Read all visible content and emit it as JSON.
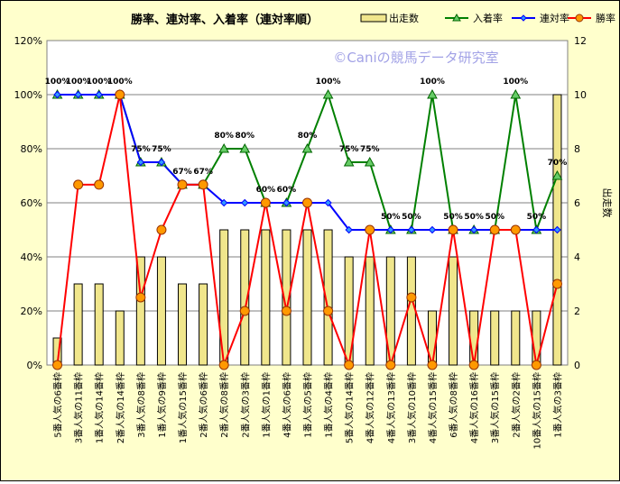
{
  "chart_data": {
    "type": "bar+line",
    "title": "勝率、連対率、入着率（連対率順）",
    "watermark": "©Caniの競馬データ研究室",
    "y2label": "出走数",
    "ylim": [
      0,
      1.2
    ],
    "y2lim": [
      0,
      12
    ],
    "yticks": [
      "0%",
      "20%",
      "40%",
      "60%",
      "80%",
      "100%",
      "120%"
    ],
    "y2ticks": [
      "0",
      "2",
      "4",
      "6",
      "8",
      "10",
      "12"
    ],
    "grid": true,
    "legend_position": "top-right",
    "categories": [
      "5番人気の6番枠",
      "3番人気の11番枠",
      "1番人気の14番枠",
      "2番人気の14番枠",
      "3番人気の8番枠",
      "1番人気の9番枠",
      "1番人気の15番枠",
      "2番人気の6番枠",
      "2番人気の8番枠",
      "2番人気の3番枠",
      "1番人気の1番枠",
      "4番人気の6番枠",
      "1番人気の5番枠",
      "1番人気の4番枠",
      "5番人気の14番枠",
      "4番人気の12番枠",
      "4番人気の13番枠",
      "3番人気の10番枠",
      "4番人気の15番枠",
      "6番人気の8番枠",
      "4番人気の16番枠",
      "3番人気の15番枠",
      "2番人気の2番枠",
      "10番人気の15番枠",
      "1番人気の3番枠"
    ],
    "series": [
      {
        "name": "出走数",
        "kind": "bar",
        "axis": "right",
        "color": "#f0e68c",
        "values": [
          1,
          3,
          3,
          2,
          4,
          4,
          3,
          3,
          5,
          5,
          5,
          5,
          5,
          5,
          4,
          4,
          4,
          4,
          2,
          4,
          2,
          2,
          2,
          2,
          10
        ]
      },
      {
        "name": "入着率",
        "kind": "line",
        "axis": "left",
        "color": "#008000",
        "marker": "triangle",
        "values": [
          1.0,
          1.0,
          1.0,
          1.0,
          0.75,
          0.75,
          0.667,
          0.667,
          0.8,
          0.8,
          0.6,
          0.6,
          0.8,
          1.0,
          0.75,
          0.75,
          0.5,
          0.5,
          1.0,
          0.5,
          0.5,
          0.5,
          1.0,
          0.5,
          0.7
        ]
      },
      {
        "name": "連対率",
        "kind": "line",
        "axis": "left",
        "color": "#0000ff",
        "marker": "diamond",
        "values": [
          1.0,
          1.0,
          1.0,
          1.0,
          0.75,
          0.75,
          0.667,
          0.667,
          0.6,
          0.6,
          0.6,
          0.6,
          0.6,
          0.6,
          0.5,
          0.5,
          0.5,
          0.5,
          0.5,
          0.5,
          0.5,
          0.5,
          0.5,
          0.5,
          0.5
        ]
      },
      {
        "name": "勝率",
        "kind": "line",
        "axis": "left",
        "color": "#ff0000",
        "marker": "circle",
        "values": [
          0,
          0.667,
          0.667,
          1.0,
          0.25,
          0.5,
          0.667,
          0.667,
          0,
          0.2,
          0.6,
          0.2,
          0.6,
          0.2,
          0,
          0.5,
          0,
          0.25,
          0,
          0.5,
          0,
          0.5,
          0.5,
          0,
          0.3
        ]
      }
    ],
    "data_labels": [
      "100%",
      "100%",
      "100%",
      "100%",
      "75%",
      "75%",
      "67%",
      "67%",
      "80%",
      "80%",
      "60%",
      "60%",
      "80%",
      "100%",
      "75%",
      "75%",
      "50%",
      "50%",
      "100%",
      "50%",
      "50%",
      "50%",
      "100%",
      "50%",
      "70%"
    ]
  }
}
